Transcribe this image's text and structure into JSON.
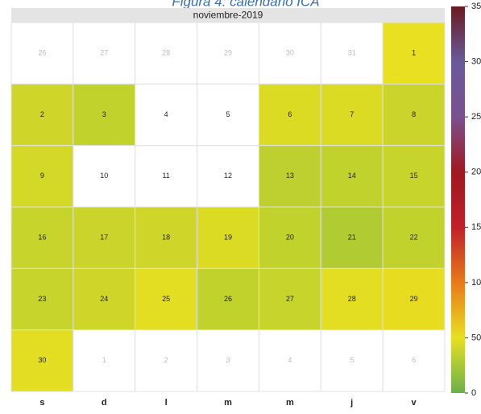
{
  "chart_data": {
    "type": "calendar_heatmap",
    "title": "Figura 4: calendario ICA",
    "month_label": "noviembre-2019",
    "weekdays": [
      "s",
      "d",
      "l",
      "m",
      "m",
      "j",
      "v"
    ],
    "leading_days": [
      26,
      27,
      28,
      29,
      30,
      31
    ],
    "days": [
      1,
      2,
      3,
      4,
      5,
      6,
      7,
      8,
      9,
      10,
      11,
      12,
      13,
      14,
      15,
      16,
      17,
      18,
      19,
      20,
      21,
      22,
      23,
      24,
      25,
      26,
      27,
      28,
      29,
      30
    ],
    "values": [
      50,
      40,
      35,
      null,
      null,
      45,
      45,
      38,
      42,
      null,
      null,
      null,
      33,
      35,
      37,
      37,
      38,
      40,
      45,
      35,
      28,
      35,
      37,
      40,
      48,
      35,
      37,
      48,
      52,
      48
    ],
    "trailing_days": [
      1,
      2,
      3,
      4,
      5,
      6
    ],
    "colorscale": [
      {
        "value": 0,
        "color": "#6ab04c"
      },
      {
        "value": 50,
        "color": "#e8e020"
      },
      {
        "value": 100,
        "color": "#e87a1a"
      },
      {
        "value": 150,
        "color": "#c0202a"
      },
      {
        "value": 200,
        "color": "#a01820"
      },
      {
        "value": 250,
        "color": "#7a5090"
      },
      {
        "value": 300,
        "color": "#6a5a9a"
      },
      {
        "value": 350,
        "color": "#6a1a20"
      }
    ],
    "ylim": [
      0,
      350
    ],
    "yticks": [
      0,
      50,
      100,
      150,
      200,
      250,
      300,
      350
    ]
  }
}
